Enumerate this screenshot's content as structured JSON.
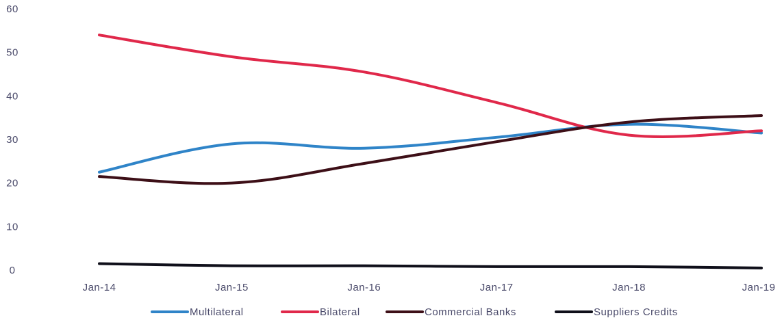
{
  "chart_data": {
    "type": "line",
    "title": "",
    "xlabel": "",
    "ylabel": "",
    "categories": [
      "Jan-14",
      "Jan-15",
      "Jan-16",
      "Jan-17",
      "Jan-18",
      "Jan-19"
    ],
    "ylim": [
      0,
      60
    ],
    "yticks": [
      0,
      10,
      20,
      30,
      40,
      50,
      60
    ],
    "grid": false,
    "legend_position": "bottom",
    "series": [
      {
        "name": "Multilateral",
        "color": "#2f84c8",
        "values": [
          22.5,
          29,
          28,
          30.5,
          33.5,
          31.5
        ]
      },
      {
        "name": "Bilateral",
        "color": "#e0284a",
        "values": [
          54,
          49,
          45.5,
          38.5,
          31,
          32
        ]
      },
      {
        "name": "Commercial Banks",
        "color": "#3d0f17",
        "values": [
          21.5,
          20,
          24.5,
          29.5,
          34,
          35.5
        ]
      },
      {
        "name": "Suppliers Credits",
        "color": "#0f0f1a",
        "values": [
          1.5,
          1,
          1,
          0.8,
          0.8,
          0.5
        ]
      }
    ]
  }
}
